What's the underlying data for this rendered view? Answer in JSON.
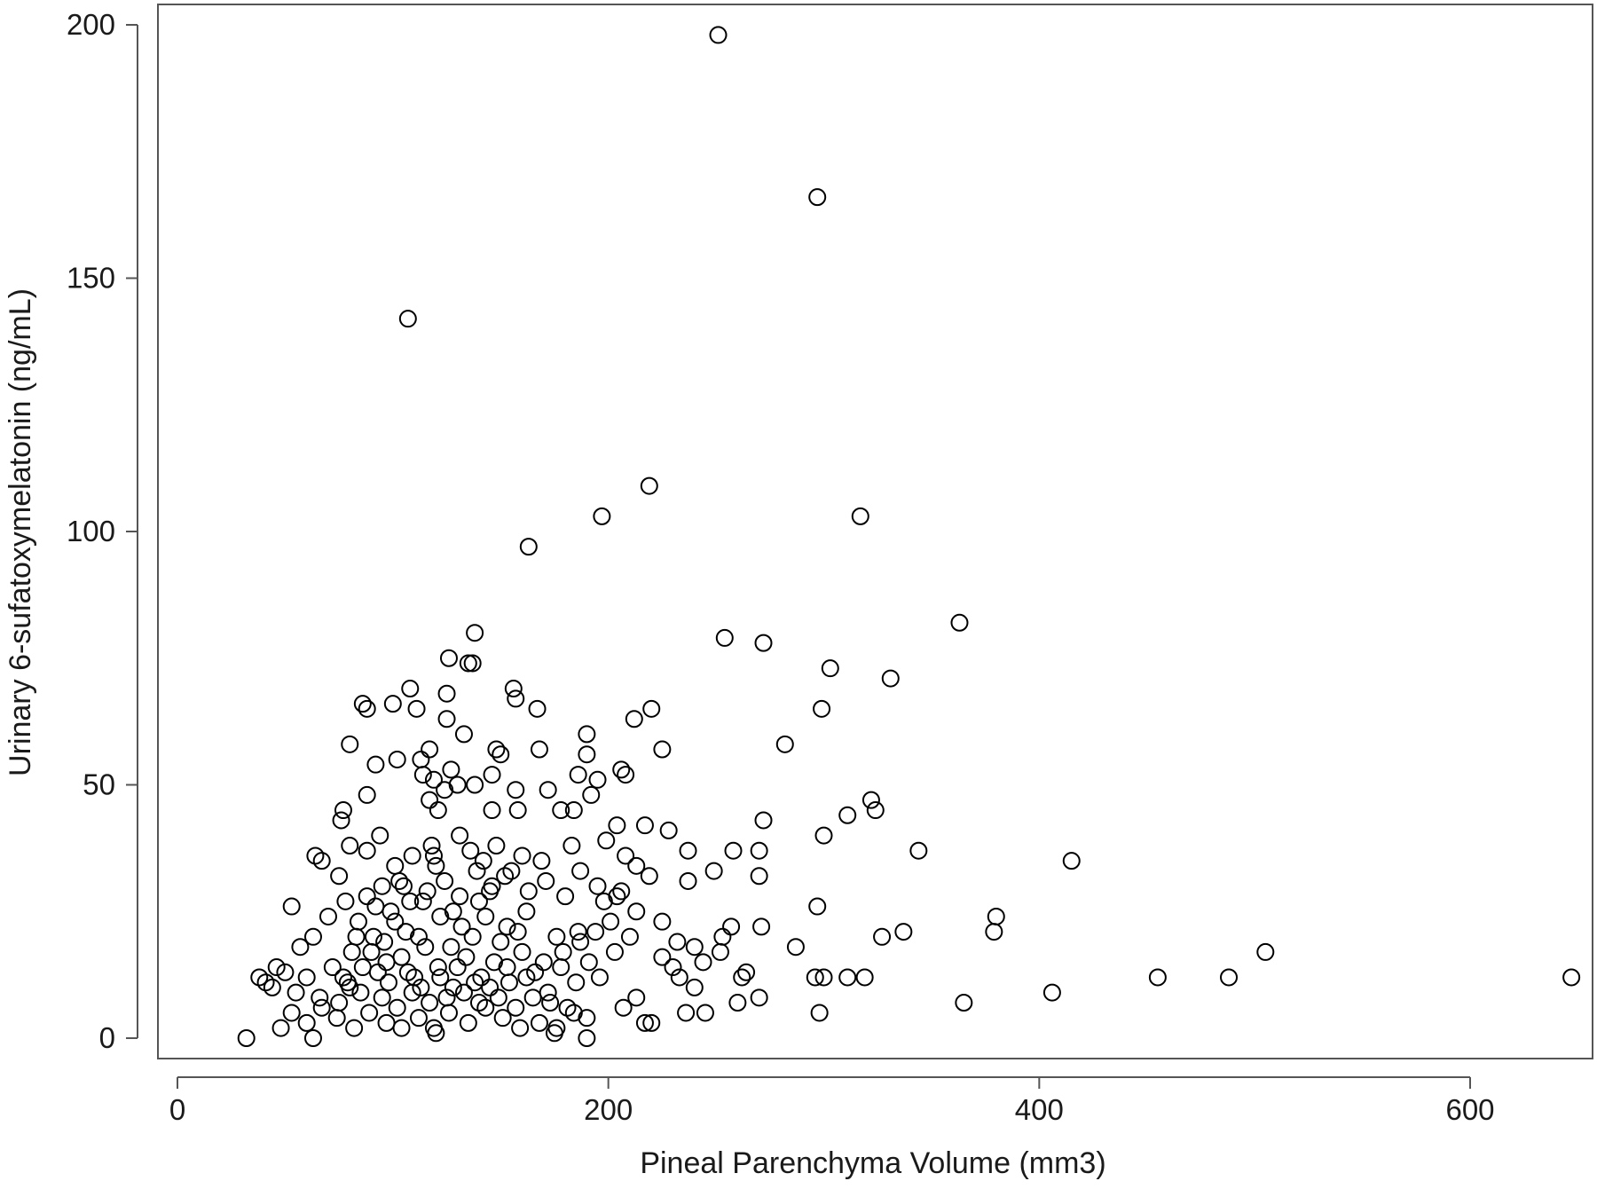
{
  "chart_data": {
    "type": "scatter",
    "xlabel": "Pineal Parenchyma Volume (mm3)",
    "ylabel": "Urinary 6-sufatoxymelatonin (ng/mL)",
    "xlim": [
      -10,
      650
    ],
    "ylim": [
      -4,
      202
    ],
    "x_ticks": [
      0,
      200,
      400,
      600
    ],
    "y_ticks": [
      0,
      50,
      100,
      150,
      200
    ],
    "marker": "open-circle",
    "marker_color": "#000000",
    "grid": false,
    "legend": "none",
    "series": [
      {
        "points": [
          [
            251,
            198
          ],
          [
            297,
            166
          ],
          [
            107,
            142
          ],
          [
            219,
            109
          ],
          [
            197,
            103
          ],
          [
            317,
            103
          ],
          [
            163,
            97
          ],
          [
            363,
            82
          ],
          [
            138,
            80
          ],
          [
            254,
            79
          ],
          [
            272,
            78
          ],
          [
            126,
            75
          ],
          [
            135,
            74
          ],
          [
            137,
            74
          ],
          [
            303,
            73
          ],
          [
            331,
            71
          ],
          [
            156,
            69
          ],
          [
            108,
            69
          ],
          [
            157,
            67
          ],
          [
            125,
            68
          ],
          [
            86,
            66
          ],
          [
            88,
            65
          ],
          [
            100,
            66
          ],
          [
            111,
            65
          ],
          [
            167,
            65
          ],
          [
            220,
            65
          ],
          [
            299,
            65
          ],
          [
            125,
            63
          ],
          [
            212,
            63
          ],
          [
            133,
            60
          ],
          [
            190,
            60
          ],
          [
            80,
            58
          ],
          [
            168,
            57
          ],
          [
            225,
            57
          ],
          [
            282,
            58
          ],
          [
            150,
            56
          ],
          [
            148,
            57
          ],
          [
            190,
            56
          ],
          [
            102,
            55
          ],
          [
            117,
            57
          ],
          [
            113,
            55
          ],
          [
            92,
            54
          ],
          [
            206,
            53
          ],
          [
            208,
            52
          ],
          [
            186,
            52
          ],
          [
            146,
            52
          ],
          [
            127,
            53
          ],
          [
            114,
            52
          ],
          [
            119,
            51
          ],
          [
            195,
            51
          ],
          [
            130,
            50
          ],
          [
            138,
            50
          ],
          [
            124,
            49
          ],
          [
            157,
            49
          ],
          [
            172,
            49
          ],
          [
            88,
            48
          ],
          [
            192,
            48
          ],
          [
            117,
            47
          ],
          [
            77,
            45
          ],
          [
            158,
            45
          ],
          [
            178,
            45
          ],
          [
            121,
            45
          ],
          [
            184,
            45
          ],
          [
            146,
            45
          ],
          [
            76,
            43
          ],
          [
            204,
            42
          ],
          [
            217,
            42
          ],
          [
            228,
            41
          ],
          [
            272,
            43
          ],
          [
            311,
            44
          ],
          [
            322,
            47
          ],
          [
            324,
            45
          ],
          [
            415,
            35
          ],
          [
            344,
            37
          ],
          [
            300,
            40
          ],
          [
            237,
            37
          ],
          [
            258,
            37
          ],
          [
            270,
            37
          ],
          [
            270,
            32
          ],
          [
            237,
            31
          ],
          [
            249,
            33
          ],
          [
            64,
            36
          ],
          [
            67,
            35
          ],
          [
            75,
            32
          ],
          [
            80,
            38
          ],
          [
            88,
            37
          ],
          [
            94,
            40
          ],
          [
            101,
            34
          ],
          [
            119,
            36
          ],
          [
            131,
            40
          ],
          [
            148,
            38
          ],
          [
            160,
            36
          ],
          [
            169,
            35
          ],
          [
            183,
            38
          ],
          [
            199,
            39
          ],
          [
            208,
            36
          ],
          [
            213,
            34
          ],
          [
            219,
            32
          ],
          [
            204,
            28
          ],
          [
            213,
            25
          ],
          [
            297,
            26
          ],
          [
            380,
            24
          ],
          [
            379,
            21
          ],
          [
            337,
            21
          ],
          [
            327,
            20
          ],
          [
            287,
            18
          ],
          [
            271,
            22
          ],
          [
            257,
            22
          ],
          [
            253,
            20
          ],
          [
            240,
            18
          ],
          [
            232,
            19
          ],
          [
            225,
            23
          ],
          [
            203,
            17
          ],
          [
            198,
            27
          ],
          [
            186,
            21
          ],
          [
            176,
            20
          ],
          [
            162,
            25
          ],
          [
            153,
            22
          ],
          [
            146,
            30
          ],
          [
            140,
            27
          ],
          [
            132,
            22
          ],
          [
            122,
            24
          ],
          [
            114,
            27
          ],
          [
            106,
            21
          ],
          [
            99,
            25
          ],
          [
            91,
            20
          ],
          [
            84,
            23
          ],
          [
            78,
            27
          ],
          [
            70,
            24
          ],
          [
            63,
            20
          ],
          [
            57,
            18
          ],
          [
            53,
            26
          ],
          [
            46,
            14
          ],
          [
            41,
            11
          ],
          [
            38,
            12
          ],
          [
            44,
            10
          ],
          [
            50,
            13
          ],
          [
            55,
            9
          ],
          [
            60,
            12
          ],
          [
            66,
            8
          ],
          [
            72,
            14
          ],
          [
            79,
            11
          ],
          [
            85,
            9
          ],
          [
            93,
            13
          ],
          [
            98,
            11
          ],
          [
            104,
            16
          ],
          [
            110,
            12
          ],
          [
            115,
            18
          ],
          [
            121,
            14
          ],
          [
            128,
            10
          ],
          [
            134,
            16
          ],
          [
            141,
            12
          ],
          [
            147,
            15
          ],
          [
            154,
            11
          ],
          [
            160,
            17
          ],
          [
            166,
            13
          ],
          [
            172,
            9
          ],
          [
            178,
            14
          ],
          [
            185,
            11
          ],
          [
            191,
            15
          ],
          [
            196,
            12
          ],
          [
            213,
            8
          ],
          [
            230,
            14
          ],
          [
            240,
            10
          ],
          [
            264,
            13
          ],
          [
            270,
            8
          ],
          [
            260,
            7
          ],
          [
            296,
            12
          ],
          [
            300,
            12
          ],
          [
            311,
            12
          ],
          [
            319,
            12
          ],
          [
            365,
            7
          ],
          [
            406,
            9
          ],
          [
            455,
            12
          ],
          [
            488,
            12
          ],
          [
            505,
            17
          ],
          [
            647,
            12
          ],
          [
            298,
            5
          ],
          [
            245,
            5
          ],
          [
            236,
            5
          ],
          [
            220,
            3
          ],
          [
            217,
            3
          ],
          [
            207,
            6
          ],
          [
            190,
            4
          ],
          [
            184,
            5
          ],
          [
            176,
            2
          ],
          [
            168,
            3
          ],
          [
            159,
            2
          ],
          [
            151,
            4
          ],
          [
            143,
            6
          ],
          [
            135,
            3
          ],
          [
            126,
            5
          ],
          [
            119,
            2
          ],
          [
            112,
            4
          ],
          [
            104,
            2
          ],
          [
            97,
            3
          ],
          [
            89,
            5
          ],
          [
            82,
            2
          ],
          [
            74,
            4
          ],
          [
            67,
            6
          ],
          [
            60,
            3
          ],
          [
            53,
            5
          ],
          [
            48,
            2
          ],
          [
            32,
            0
          ],
          [
            63,
            0
          ],
          [
            120,
            1
          ],
          [
            190,
            0
          ],
          [
            175,
            1
          ],
          [
            88,
            28
          ],
          [
            95,
            30
          ],
          [
            103,
            31
          ],
          [
            108,
            27
          ],
          [
            116,
            29
          ],
          [
            124,
            31
          ],
          [
            131,
            28
          ],
          [
            139,
            33
          ],
          [
            145,
            29
          ],
          [
            152,
            32
          ],
          [
            109,
            36
          ],
          [
            118,
            38
          ],
          [
            96,
            19
          ],
          [
            101,
            23
          ],
          [
            112,
            20
          ],
          [
            127,
            18
          ],
          [
            137,
            20
          ],
          [
            143,
            24
          ],
          [
            150,
            19
          ],
          [
            158,
            21
          ],
          [
            81,
            17
          ],
          [
            86,
            14
          ],
          [
            95,
            8
          ],
          [
            102,
            6
          ],
          [
            109,
            9
          ],
          [
            117,
            7
          ],
          [
            125,
            8
          ],
          [
            133,
            9
          ],
          [
            140,
            7
          ],
          [
            149,
            8
          ],
          [
            157,
            6
          ],
          [
            165,
            8
          ],
          [
            173,
            7
          ],
          [
            181,
            6
          ],
          [
            83,
            20
          ],
          [
            90,
            17
          ],
          [
            97,
            15
          ],
          [
            107,
            13
          ],
          [
            113,
            10
          ],
          [
            122,
            12
          ],
          [
            130,
            14
          ],
          [
            138,
            11
          ],
          [
            145,
            10
          ],
          [
            153,
            14
          ],
          [
            162,
            12
          ],
          [
            170,
            15
          ],
          [
            179,
            17
          ],
          [
            187,
            19
          ],
          [
            194,
            21
          ],
          [
            201,
            23
          ],
          [
            210,
            20
          ],
          [
            225,
            16
          ],
          [
            233,
            12
          ],
          [
            244,
            15
          ],
          [
            252,
            17
          ],
          [
            262,
            12
          ],
          [
            75,
            7
          ],
          [
            77,
            12
          ],
          [
            80,
            10
          ],
          [
            92,
            26
          ],
          [
            105,
            30
          ],
          [
            120,
            34
          ],
          [
            128,
            25
          ],
          [
            136,
            37
          ],
          [
            142,
            35
          ],
          [
            155,
            33
          ],
          [
            163,
            29
          ],
          [
            171,
            31
          ],
          [
            180,
            28
          ],
          [
            187,
            33
          ],
          [
            195,
            30
          ],
          [
            206,
            29
          ]
        ]
      }
    ]
  }
}
